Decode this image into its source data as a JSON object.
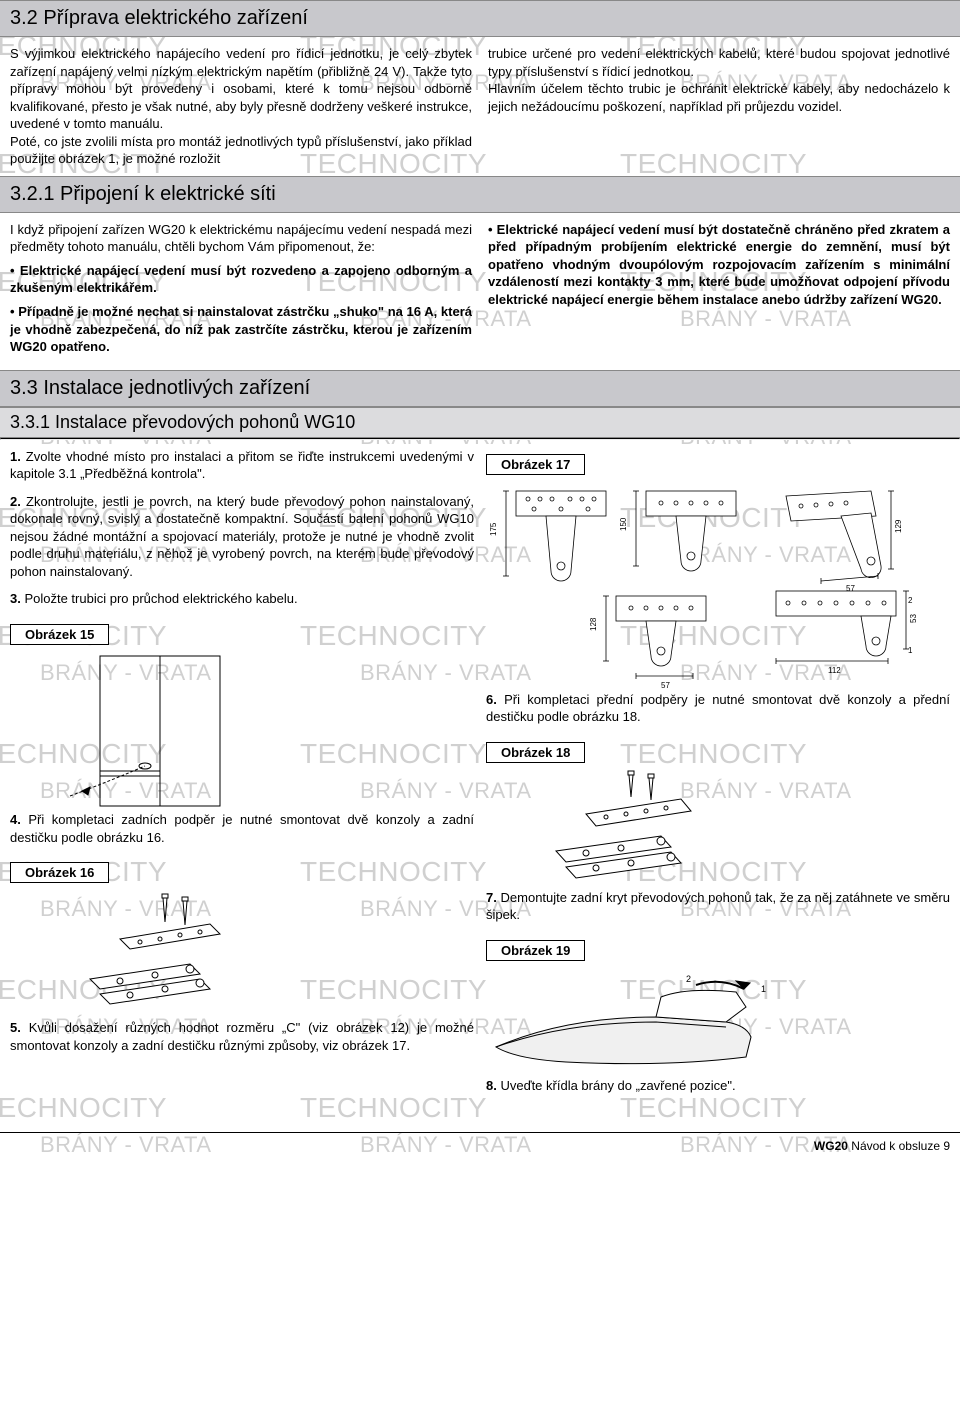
{
  "watermark": {
    "text1": "TECHNOCITY",
    "text2": "BRÁNY - VRATA",
    "color": "#d0d0d0"
  },
  "section_3_2": {
    "title": "3.2 Příprava elektrického zařízení",
    "left": "S výjimkou elektrického napájecího vedení pro řídicí jednotku, je celý zbytek zařízení napájený velmi nízkým elektrickým napětím (přibližně 24 V). Takže tyto přípravy mohou být provedeny i osobami, které k tomu nejsou odborně kvalifikované, přesto je však nutné, aby byly přesně dodrženy veškeré instrukce, uvedené v tomto manuálu.\nPoté, co jste zvolili místa pro montáž jednotlivých typů příslušenství, jako příklad použijte obrázek 1, je možné rozložit",
    "right": "trubice určené pro vedení elektrických kabelů, které budou spojovat jednotlivé typy příslušenství s řídicí jednotkou.\nHlavním účelem těchto trubic je ochránit elektrické kabely, aby nedocházelo k jejich nežádoucímu poškození, například při průjezdu vozidel."
  },
  "section_3_2_1": {
    "title": "3.2.1 Připojení k elektrické síti",
    "left_intro": "I když připojení zařízen WG20 k elektrickému napájecímu vedení nespadá mezi předměty tohoto manuálu, chtěli bychom Vám připomenout, že:",
    "left_b1": "• Elektrické napájecí vedení musí být rozvedeno a zapojeno odborným a zkušeným elektrikářem.",
    "left_b2": "• Případně je možné nechat si nainstalovat zástrčku „shuko\" na 16 A, která je vhodně zabezpečená, do níž pak zastrčíte zástrčku, kterou je zařízením WG20 opatřeno.",
    "right_b1": "• Elektrické napájecí vedení musí být dostatečně chráněno před zkratem a před případným probíjením elektrické energie do zemnění, musí být opatřeno vhodným dvoupólovým rozpojovacím zařízením s minimální vzdáleností mezi kontakty 3 mm, které bude umožňovat odpojení přívodu elektrické napájecí energie během instalace anebo údržby zařízení WG20."
  },
  "section_3_3": {
    "title": "3.3 Instalace jednotlivých zařízení"
  },
  "section_3_3_1": {
    "title": "3.3.1 Instalace převodových pohonů WG10",
    "step1": " Zvolte vhodné místo pro instalaci a přitom se řiďte instrukcemi uvedenými v kapitole 3.1 „Předběžná kontrola\".",
    "step2": " Zkontrolujte, jestli je povrch, na který bude převodový pohon nainstalovaný, dokonale rovný, svislý a dostatečně kompaktní. Součástí balení pohonů WG10 nejsou žádné montážní a spojovací materiály, protože je nutné je vhodně zvolit podle druhu materiálu, z něhož je vyrobený povrch, na kterém bude převodový pohon nainstalovaný.",
    "step3": " Položte trubici pro průchod elektrického kabelu.",
    "fig15": "Obrázek 15",
    "step4": " Při kompletaci zadních podpěr je nutné smontovat dvě konzoly a zadní destičku podle obrázku 16.",
    "fig16": "Obrázek 16",
    "step5": " Kvůli dosažení různých hodnot rozměru „C\" (viz obrázek 12) je možné smontovat konzoly a zadní destičku různými způsoby, viz obrázek 17.",
    "fig17": "Obrázek 17",
    "step6": " Při kompletaci přední podpěry je nutné smontovat dvě konzoly a přední destičku podle obrázku 18.",
    "fig18": "Obrázek 18",
    "step7": " Demontujte zadní kryt převodových pohonů tak, že za něj zatáhnete ve směru šipek.",
    "fig19": "Obrázek 19",
    "step8": " Uveďte křídla brány do „zavřené pozice\"."
  },
  "footer": {
    "product": "WG20",
    "text": " Návod k obsluze 9"
  },
  "dims": {
    "d175": "175",
    "d150": "150",
    "d129": "129",
    "d57": "57",
    "d128": "128",
    "d53": "53",
    "d112": "112",
    "n1": "1",
    "n2": "2"
  }
}
